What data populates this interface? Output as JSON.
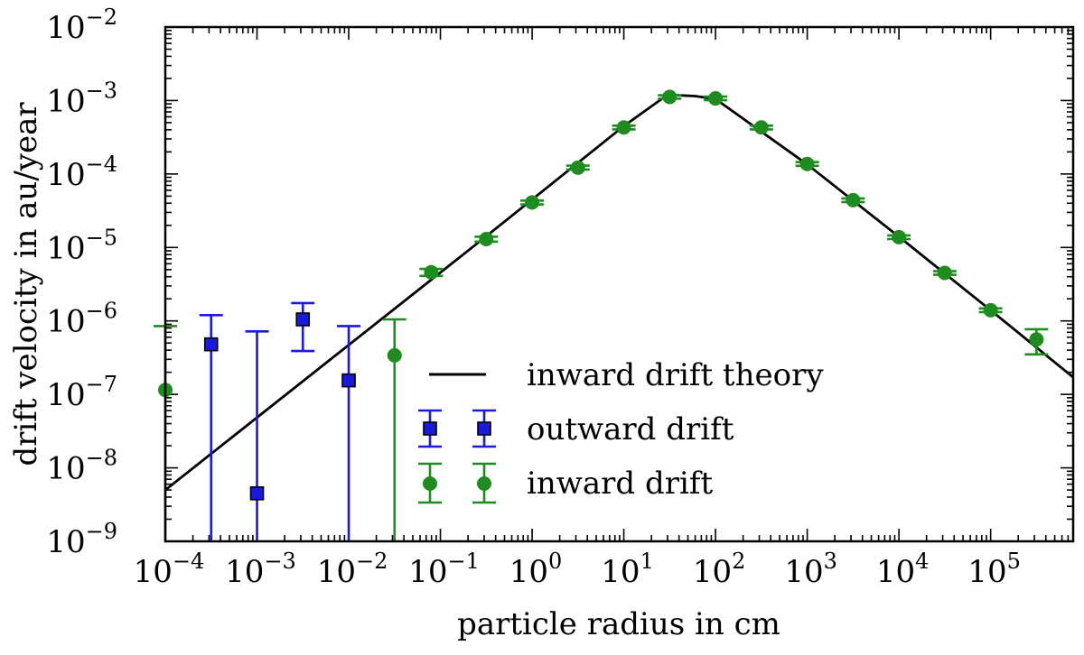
{
  "chart_data": {
    "type": "scatter",
    "xlabel": "particle radius in cm",
    "ylabel": "drift velocity in au/year",
    "x_scale": "log",
    "y_scale": "log",
    "xlim_exp": [
      -4,
      5.9
    ],
    "ylim_exp": [
      -9,
      -2
    ],
    "x_tick_exponents": [
      -4,
      -3,
      -2,
      -1,
      0,
      1,
      2,
      3,
      4,
      5
    ],
    "y_tick_exponents": [
      -9,
      -8,
      -7,
      -6,
      -5,
      -4,
      -3,
      -2
    ],
    "tick_base": "10",
    "theory": {
      "name": "inward drift theory",
      "color": "#000000",
      "points": [
        [
          0.0001,
          5e-09
        ],
        [
          0.3,
          1.35e-05
        ],
        [
          10,
          0.00045
        ],
        [
          30,
          0.0012
        ],
        [
          60,
          0.00115
        ],
        [
          100,
          0.00105
        ],
        [
          1000,
          0.000135
        ],
        [
          10000,
          1.4e-05
        ],
        [
          100000,
          1.4e-06
        ],
        [
          800000,
          1.7e-07
        ]
      ]
    },
    "outward": {
      "name": "outward drift",
      "color": "#1a1adc",
      "points": [
        {
          "x": 0.000316,
          "y": 4.8e-07,
          "lo": 1e-09,
          "hi": 1.2e-06
        },
        {
          "x": 0.001,
          "y": 4.5e-09,
          "lo": 1e-09,
          "hi": 7.2e-07
        },
        {
          "x": 0.00316,
          "y": 1.05e-06,
          "lo": 3.9e-07,
          "hi": 1.75e-06
        },
        {
          "x": 0.01,
          "y": 1.55e-07,
          "lo": 1e-09,
          "hi": 8.5e-07
        }
      ]
    },
    "inward": {
      "name": "inward drift",
      "color": "#1e8c1e",
      "points": [
        {
          "x": 0.0001,
          "y": 1.15e-07,
          "lo": 1e-09,
          "hi": 8.5e-07
        },
        {
          "x": 0.0316,
          "y": 3.4e-07,
          "lo": 1e-09,
          "hi": 1.05e-06
        },
        {
          "x": 0.0794,
          "y": 4.6e-06,
          "lo": 4.1e-06,
          "hi": 5.1e-06
        },
        {
          "x": 0.316,
          "y": 1.3e-05,
          "lo": 1.2e-05,
          "hi": 1.4e-05
        },
        {
          "x": 1,
          "y": 4.1e-05,
          "lo": 3.85e-05,
          "hi": 4.35e-05
        },
        {
          "x": 3.16,
          "y": 0.000122,
          "lo": 0.000115,
          "hi": 0.00013
        },
        {
          "x": 10,
          "y": 0.00043,
          "lo": 0.000405,
          "hi": 0.000455
        },
        {
          "x": 31.6,
          "y": 0.00112,
          "lo": 0.00106,
          "hi": 0.00118
        },
        {
          "x": 100,
          "y": 0.00107,
          "lo": 0.00101,
          "hi": 0.00113
        },
        {
          "x": 316,
          "y": 0.00043,
          "lo": 0.000405,
          "hi": 0.000455
        },
        {
          "x": 1000,
          "y": 0.000137,
          "lo": 0.000129,
          "hi": 0.000145
        },
        {
          "x": 3160,
          "y": 4.4e-05,
          "lo": 4.15e-05,
          "hi": 4.65e-05
        },
        {
          "x": 10000,
          "y": 1.38e-05,
          "lo": 1.3e-05,
          "hi": 1.46e-05
        },
        {
          "x": 31600,
          "y": 4.5e-06,
          "lo": 4.25e-06,
          "hi": 4.75e-06
        },
        {
          "x": 100000,
          "y": 1.4e-06,
          "lo": 1.32e-06,
          "hi": 1.48e-06
        },
        {
          "x": 316000,
          "y": 5.6e-07,
          "lo": 3.5e-07,
          "hi": 7.7e-07
        }
      ]
    },
    "legend": {
      "position": "center-right",
      "entries": [
        "inward drift theory",
        "outward drift",
        "inward drift"
      ]
    }
  }
}
